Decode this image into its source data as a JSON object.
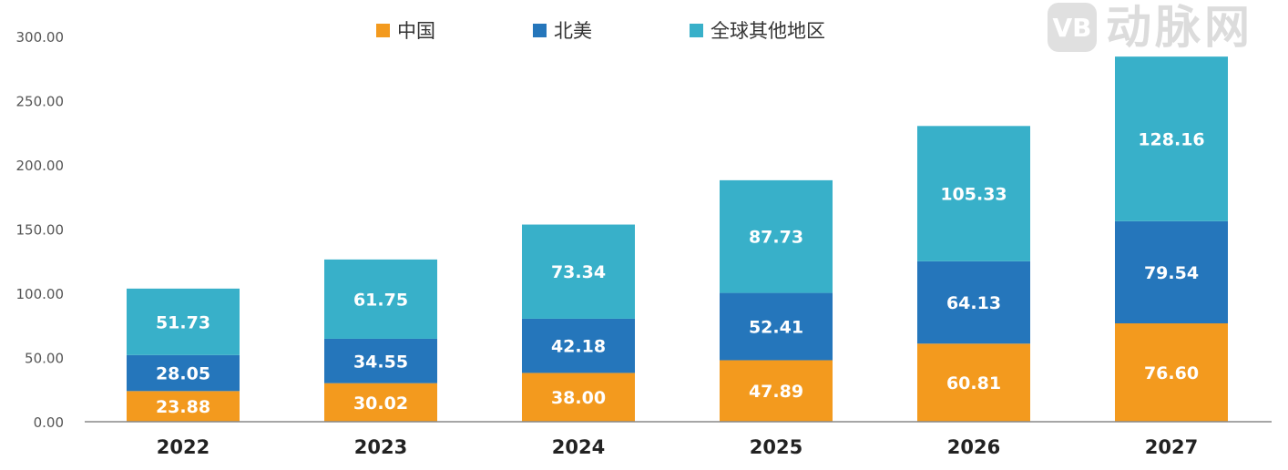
{
  "chart_data": {
    "type": "bar",
    "stacked": true,
    "title": "",
    "xlabel": "",
    "ylabel": "",
    "categories": [
      "2022",
      "2023",
      "2024",
      "2025",
      "2026",
      "2027"
    ],
    "ylim": [
      0,
      300
    ],
    "yticks": [
      "0.00",
      "50.00",
      "100.00",
      "150.00",
      "200.00",
      "250.00",
      "300.00"
    ],
    "grid": false,
    "legend_position": "top",
    "series": [
      {
        "name": "中国",
        "color": "#f39a1e",
        "values": [
          23.88,
          30.02,
          38.0,
          47.89,
          60.81,
          76.6
        ],
        "labels": [
          "23.88",
          "30.02",
          "38.00",
          "47.89",
          "60.81",
          "76.60"
        ]
      },
      {
        "name": "北美",
        "color": "#2576bb",
        "values": [
          28.05,
          34.55,
          42.18,
          52.41,
          64.13,
          79.54
        ],
        "labels": [
          "28.05",
          "34.55",
          "42.18",
          "52.41",
          "64.13",
          "79.54"
        ]
      },
      {
        "name": "全球其他地区",
        "color": "#38b0c9",
        "values": [
          51.73,
          61.75,
          73.34,
          87.73,
          105.33,
          128.16
        ],
        "labels": [
          "51.73",
          "61.75",
          "73.34",
          "87.73",
          "105.33",
          "128.16"
        ]
      }
    ]
  },
  "watermark": {
    "logo": "VB",
    "text": "动脉网"
  }
}
